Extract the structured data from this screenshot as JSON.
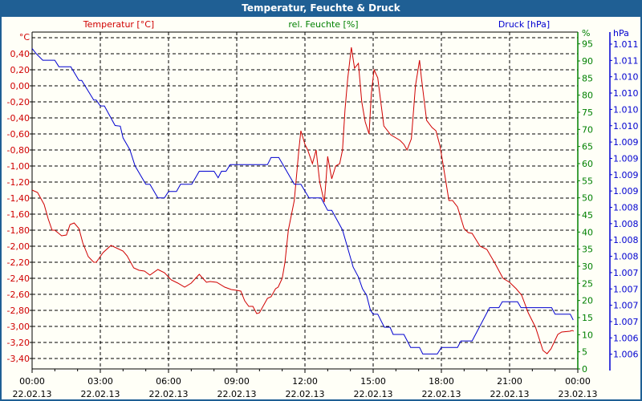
{
  "window": {
    "title": "Temperatur, Feuchte & Druck"
  },
  "colors": {
    "temperature": "#d00000",
    "humidity": "#008000",
    "pressure": "#0000d0",
    "titlebar": "#1f5f94"
  },
  "chart_data": {
    "type": "line",
    "title": "Temperatur, Feuchte & Druck",
    "legend": {
      "temperature": "Temperatur [°C]",
      "humidity": "rel. Feuchte [%]",
      "pressure": "Druck [hPa]"
    },
    "axes": {
      "left": {
        "unit": "°C",
        "range": [
          -3.53,
          0.6
        ],
        "ticks": [
          "0,40",
          "0,20",
          "0,00",
          "-0,20",
          "-0,40",
          "-0,60",
          "-0,80",
          "-1,00",
          "-1,20",
          "-1,40",
          "-1,60",
          "-1,80",
          "-2,00",
          "-2,20",
          "-2,40",
          "-2,60",
          "-2,80",
          "-3,00",
          "-3,20",
          "-3,40"
        ]
      },
      "right_humidity": {
        "unit": "%",
        "range": [
          0,
          97
        ],
        "ticks": [
          "95",
          "90",
          "85",
          "80",
          "75",
          "70",
          "65",
          "60",
          "55",
          "50",
          "45",
          "40",
          "35",
          "30",
          "25",
          "20",
          "15",
          "10",
          "5",
          "0"
        ]
      },
      "right_pressure": {
        "unit": "hPa",
        "range": [
          1006.0,
          1010.75
        ],
        "ticks": [
          "1.011",
          "1.011",
          "1.010",
          "1.010",
          "1.010",
          "1.010",
          "1.009",
          "1.009",
          "1.009",
          "1.009",
          "1.008",
          "1.008",
          "1.008",
          "1.008",
          "1.007",
          "1.007",
          "1.007",
          "1.007",
          "1.006",
          "1.006"
        ]
      },
      "x": {
        "range_hours": [
          0,
          24
        ],
        "ticks": [
          {
            "time": "00:00",
            "date": "22.02.13"
          },
          {
            "time": "03:00",
            "date": "22.02.13"
          },
          {
            "time": "06:00",
            "date": "22.02.13"
          },
          {
            "time": "09:00",
            "date": "22.02.13"
          },
          {
            "time": "12:00",
            "date": "22.02.13"
          },
          {
            "time": "15:00",
            "date": "22.02.13"
          },
          {
            "time": "18:00",
            "date": "22.02.13"
          },
          {
            "time": "21:00",
            "date": "22.02.13"
          },
          {
            "time": "00:00",
            "date": "23.02.13"
          }
        ]
      }
    },
    "grid": true,
    "series": [
      {
        "name": "Temperatur",
        "axis": "left",
        "points": [
          [
            0,
            -1.3
          ],
          [
            0.24,
            -1.33
          ],
          [
            0.53,
            -1.48
          ],
          [
            0.71,
            -1.66
          ],
          [
            0.88,
            -1.8
          ],
          [
            1.0,
            -1.8
          ],
          [
            1.3,
            -1.87
          ],
          [
            1.51,
            -1.86
          ],
          [
            1.67,
            -1.73
          ],
          [
            1.85,
            -1.71
          ],
          [
            2.06,
            -1.78
          ],
          [
            2.23,
            -1.96
          ],
          [
            2.47,
            -2.13
          ],
          [
            2.71,
            -2.2
          ],
          [
            2.82,
            -2.2
          ],
          [
            3.12,
            -2.08
          ],
          [
            3.47,
            -1.99
          ],
          [
            4.0,
            -2.06
          ],
          [
            4.18,
            -2.12
          ],
          [
            4.47,
            -2.27
          ],
          [
            4.7,
            -2.3
          ],
          [
            4.94,
            -2.31
          ],
          [
            5.18,
            -2.36
          ],
          [
            5.53,
            -2.29
          ],
          [
            5.82,
            -2.33
          ],
          [
            6.12,
            -2.42
          ],
          [
            6.41,
            -2.46
          ],
          [
            6.71,
            -2.51
          ],
          [
            7.0,
            -2.46
          ],
          [
            7.35,
            -2.35
          ],
          [
            7.67,
            -2.45
          ],
          [
            7.82,
            -2.44
          ],
          [
            8.12,
            -2.45
          ],
          [
            8.47,
            -2.51
          ],
          [
            8.76,
            -2.54
          ],
          [
            9.0,
            -2.55
          ],
          [
            9.18,
            -2.56
          ],
          [
            9.35,
            -2.68
          ],
          [
            9.53,
            -2.75
          ],
          [
            9.71,
            -2.75
          ],
          [
            9.88,
            -2.84
          ],
          [
            10.0,
            -2.83
          ],
          [
            10.35,
            -2.65
          ],
          [
            10.51,
            -2.63
          ],
          [
            10.71,
            -2.53
          ],
          [
            10.82,
            -2.51
          ],
          [
            11.0,
            -2.4
          ],
          [
            11.12,
            -2.2
          ],
          [
            11.27,
            -1.8
          ],
          [
            11.53,
            -1.43
          ],
          [
            11.73,
            -0.8
          ],
          [
            11.82,
            -0.56
          ],
          [
            12.0,
            -0.73
          ],
          [
            12.12,
            -0.8
          ],
          [
            12.33,
            -0.97
          ],
          [
            12.49,
            -0.8
          ],
          [
            12.65,
            -1.2
          ],
          [
            12.85,
            -1.45
          ],
          [
            12.92,
            -1.2
          ],
          [
            13.0,
            -0.88
          ],
          [
            13.18,
            -1.16
          ],
          [
            13.35,
            -1.0
          ],
          [
            13.53,
            -0.97
          ],
          [
            13.65,
            -0.8
          ],
          [
            13.76,
            -0.3
          ],
          [
            13.88,
            0.09
          ],
          [
            14.04,
            0.48
          ],
          [
            14.18,
            0.22
          ],
          [
            14.35,
            0.28
          ],
          [
            14.5,
            -0.2
          ],
          [
            14.65,
            -0.45
          ],
          [
            14.82,
            -0.6
          ],
          [
            14.92,
            -0.1
          ],
          [
            15.04,
            0.2
          ],
          [
            15.2,
            0.1
          ],
          [
            15.47,
            -0.5
          ],
          [
            15.77,
            -0.61
          ],
          [
            16.18,
            -0.68
          ],
          [
            16.35,
            -0.73
          ],
          [
            16.49,
            -0.8
          ],
          [
            16.68,
            -0.66
          ],
          [
            16.86,
            0.0
          ],
          [
            17.04,
            0.32
          ],
          [
            17.12,
            0.1
          ],
          [
            17.35,
            -0.43
          ],
          [
            17.59,
            -0.52
          ],
          [
            17.76,
            -0.56
          ],
          [
            17.94,
            -0.75
          ],
          [
            18.12,
            -1.06
          ],
          [
            18.33,
            -1.43
          ],
          [
            18.49,
            -1.43
          ],
          [
            18.71,
            -1.51
          ],
          [
            19.0,
            -1.78
          ],
          [
            19.18,
            -1.83
          ],
          [
            19.35,
            -1.84
          ],
          [
            19.7,
            -2.0
          ],
          [
            20.0,
            -2.04
          ],
          [
            20.35,
            -2.21
          ],
          [
            20.71,
            -2.4
          ],
          [
            21.0,
            -2.45
          ],
          [
            21.29,
            -2.53
          ],
          [
            21.53,
            -2.61
          ],
          [
            21.82,
            -2.83
          ],
          [
            22.14,
            -3.01
          ],
          [
            22.47,
            -3.3
          ],
          [
            22.65,
            -3.34
          ],
          [
            22.82,
            -3.28
          ],
          [
            23.12,
            -3.1
          ],
          [
            23.29,
            -3.07
          ],
          [
            23.65,
            -3.06
          ],
          [
            23.76,
            -3.05
          ],
          [
            23.82,
            -3.06
          ]
        ]
      },
      {
        "name": "Druck",
        "axis": "right_pressure",
        "points": [
          [
            0,
            1010.7
          ],
          [
            0.18,
            1010.62
          ],
          [
            0.47,
            1010.52
          ],
          [
            1.0,
            1010.52
          ],
          [
            1.18,
            1010.42
          ],
          [
            1.7,
            1010.42
          ],
          [
            2.06,
            1010.21
          ],
          [
            2.18,
            1010.21
          ],
          [
            2.71,
            1009.91
          ],
          [
            2.82,
            1009.91
          ],
          [
            3.0,
            1009.82
          ],
          [
            3.18,
            1009.82
          ],
          [
            3.65,
            1009.52
          ],
          [
            3.88,
            1009.51
          ],
          [
            4.0,
            1009.33
          ],
          [
            4.3,
            1009.15
          ],
          [
            4.53,
            1008.9
          ],
          [
            5.0,
            1008.62
          ],
          [
            5.18,
            1008.62
          ],
          [
            5.53,
            1008.41
          ],
          [
            5.82,
            1008.41
          ],
          [
            6.0,
            1008.51
          ],
          [
            6.35,
            1008.51
          ],
          [
            6.53,
            1008.62
          ],
          [
            7.02,
            1008.62
          ],
          [
            7.35,
            1008.82
          ],
          [
            8.0,
            1008.82
          ],
          [
            8.18,
            1008.72
          ],
          [
            8.33,
            1008.82
          ],
          [
            8.53,
            1008.82
          ],
          [
            8.71,
            1008.92
          ],
          [
            10.35,
            1008.92
          ],
          [
            10.51,
            1009.03
          ],
          [
            10.85,
            1009.03
          ],
          [
            11.53,
            1008.62
          ],
          [
            11.82,
            1008.62
          ],
          [
            12.18,
            1008.41
          ],
          [
            12.71,
            1008.41
          ],
          [
            13.0,
            1008.22
          ],
          [
            13.18,
            1008.22
          ],
          [
            13.65,
            1007.92
          ],
          [
            14.12,
            1007.35
          ],
          [
            14.35,
            1007.2
          ],
          [
            14.53,
            1007.02
          ],
          [
            14.71,
            1006.92
          ],
          [
            14.88,
            1006.69
          ],
          [
            15.0,
            1006.63
          ],
          [
            15.2,
            1006.63
          ],
          [
            15.49,
            1006.43
          ],
          [
            15.74,
            1006.43
          ],
          [
            15.88,
            1006.32
          ],
          [
            16.35,
            1006.32
          ],
          [
            16.65,
            1006.12
          ],
          [
            17.04,
            1006.12
          ],
          [
            17.18,
            1006.02
          ],
          [
            17.82,
            1006.02
          ],
          [
            18.0,
            1006.12
          ],
          [
            18.71,
            1006.12
          ],
          [
            18.86,
            1006.22
          ],
          [
            19.35,
            1006.22
          ],
          [
            20.12,
            1006.73
          ],
          [
            20.53,
            1006.73
          ],
          [
            20.68,
            1006.82
          ],
          [
            21.35,
            1006.82
          ],
          [
            21.5,
            1006.73
          ],
          [
            22.85,
            1006.73
          ],
          [
            23.0,
            1006.63
          ],
          [
            23.67,
            1006.63
          ],
          [
            23.8,
            1006.54
          ]
        ]
      }
    ]
  }
}
